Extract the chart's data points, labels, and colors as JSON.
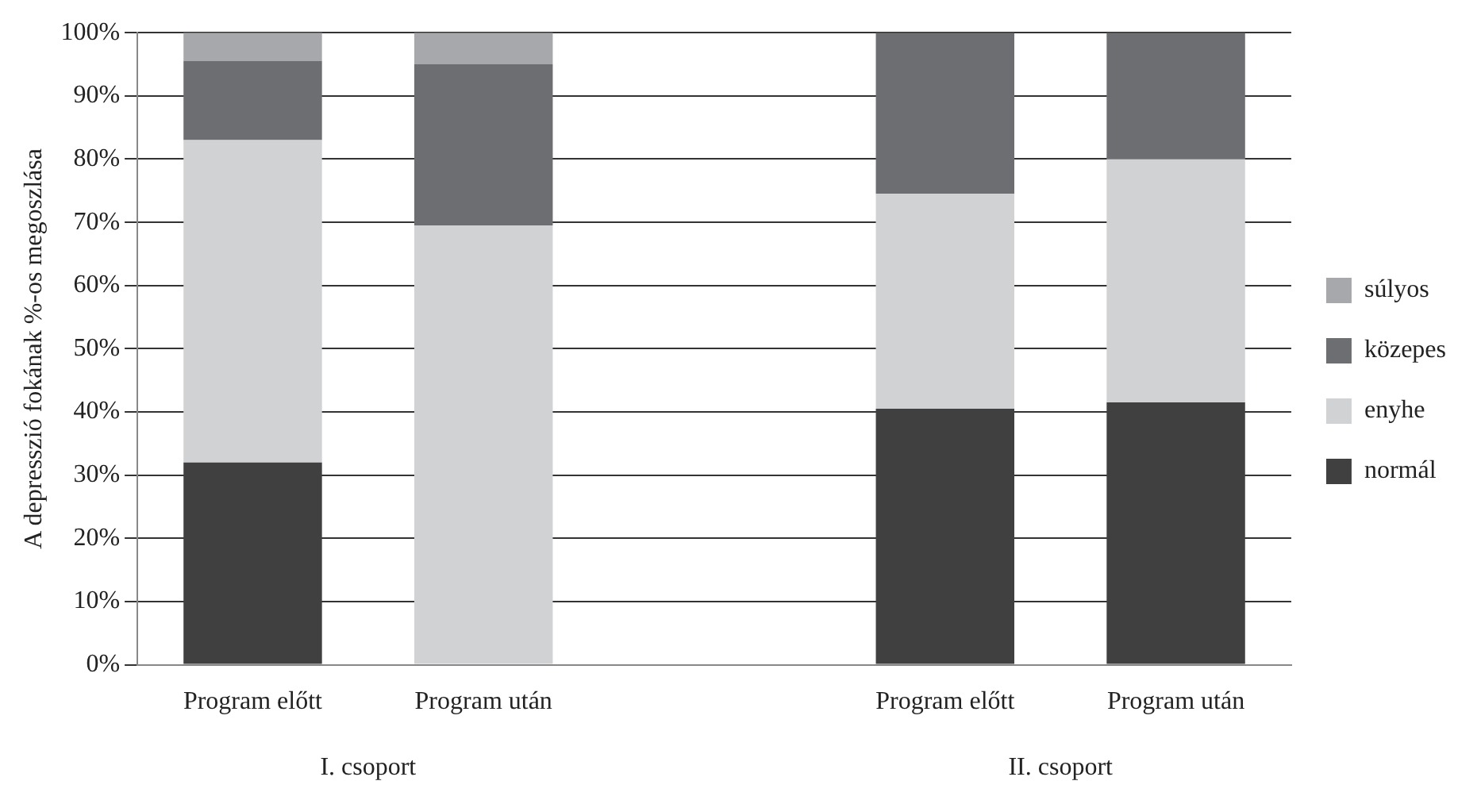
{
  "chart_data": {
    "type": "bar",
    "stacked": true,
    "ylabel": "A depresszió fokának %-os megoszlása",
    "categories": [
      "Program előtt",
      "Program után",
      null,
      "Program előtt",
      "Program után"
    ],
    "series": [
      {
        "name": "normál",
        "color": "#404040",
        "values": [
          32,
          0,
          null,
          40.5,
          41.5
        ]
      },
      {
        "name": "enyhe",
        "color": "#d1d2d4",
        "values": [
          51,
          69.5,
          null,
          34,
          38.5
        ]
      },
      {
        "name": "közepes",
        "color": "#6d6e71",
        "values": [
          12.5,
          25.5,
          null,
          25.5,
          20
        ]
      },
      {
        "name": "súlyos",
        "color": "#a7a8ab",
        "values": [
          4.5,
          5,
          null,
          0,
          0
        ]
      }
    ],
    "ylim": [
      0,
      100
    ],
    "yticks": [
      {
        "value": 0,
        "label": "0%"
      },
      {
        "value": 10,
        "label": "10%"
      },
      {
        "value": 20,
        "label": "20%"
      },
      {
        "value": 30,
        "label": "30%"
      },
      {
        "value": 40,
        "label": "40%"
      },
      {
        "value": 50,
        "label": "50%"
      },
      {
        "value": 60,
        "label": "60%"
      },
      {
        "value": 70,
        "label": "70%"
      },
      {
        "value": 80,
        "label": "80%"
      },
      {
        "value": 90,
        "label": "90%"
      },
      {
        "value": 100,
        "label": "100%"
      }
    ],
    "grid": "y",
    "legend": "right",
    "annotations": [
      "I. csoport",
      "II. csoport"
    ]
  }
}
